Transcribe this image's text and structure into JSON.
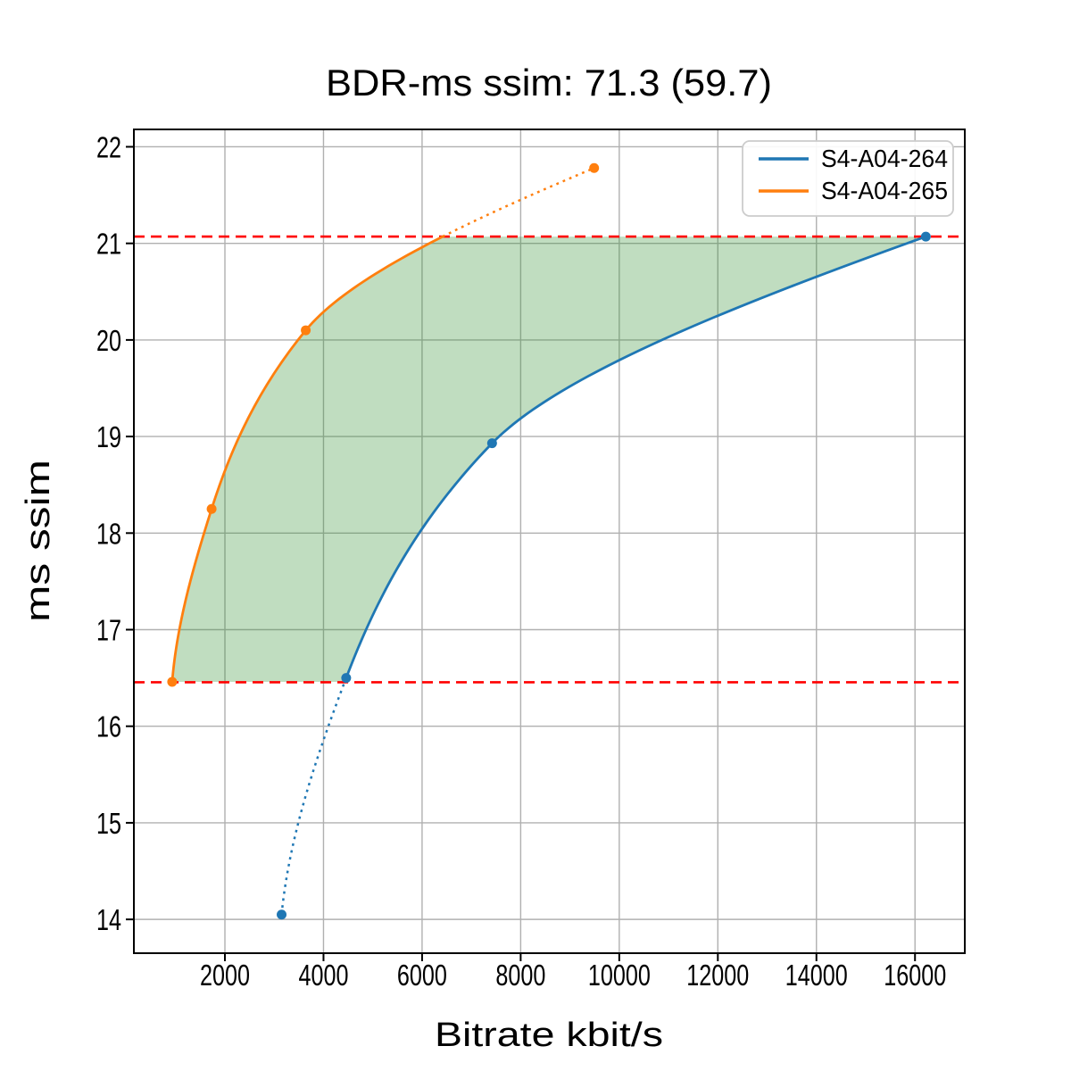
{
  "chart_data": {
    "type": "line",
    "title": "BDR-ms ssim: 71.3 (59.7)",
    "xlabel": "Bitrate kbit/s",
    "ylabel": "ms ssim",
    "xlim": [
      153,
      17010
    ],
    "ylim": [
      13.65,
      22.18
    ],
    "xticks": [
      2000,
      4000,
      6000,
      8000,
      10000,
      12000,
      14000,
      16000
    ],
    "yticks": [
      14,
      15,
      16,
      17,
      18,
      19,
      20,
      21,
      22
    ],
    "grid": true,
    "grid_color": "#b0b0b0",
    "legend": {
      "position": "upper right",
      "entries": [
        "S4-A04-264",
        "S4-A04-265"
      ]
    },
    "series": [
      {
        "name": "S4-A04-264",
        "color": "#1f77b4",
        "marker": "circle",
        "points": [
          [
            3150,
            14.05
          ],
          [
            4460,
            16.5
          ],
          [
            7420,
            18.93
          ],
          [
            16220,
            21.07
          ]
        ],
        "solid_quality_range": [
          16.5,
          21.07
        ]
      },
      {
        "name": "S4-A04-265",
        "color": "#ff7f0e",
        "marker": "circle",
        "points": [
          [
            930,
            16.46
          ],
          [
            1730,
            18.25
          ],
          [
            3640,
            20.1
          ],
          [
            9490,
            21.78
          ]
        ],
        "solid_quality_range": [
          16.46,
          21.07
        ]
      }
    ],
    "hlines": [
      {
        "y": 21.07,
        "color": "#ff0000",
        "style": "dashed"
      },
      {
        "y": 16.455,
        "color": "#ff0000",
        "style": "dashed"
      }
    ],
    "fill_between": {
      "quality_range": [
        16.46,
        21.07
      ],
      "between": [
        "S4-A04-265",
        "S4-A04-264"
      ],
      "color": "#2f8f2f",
      "opacity": 0.3
    }
  }
}
